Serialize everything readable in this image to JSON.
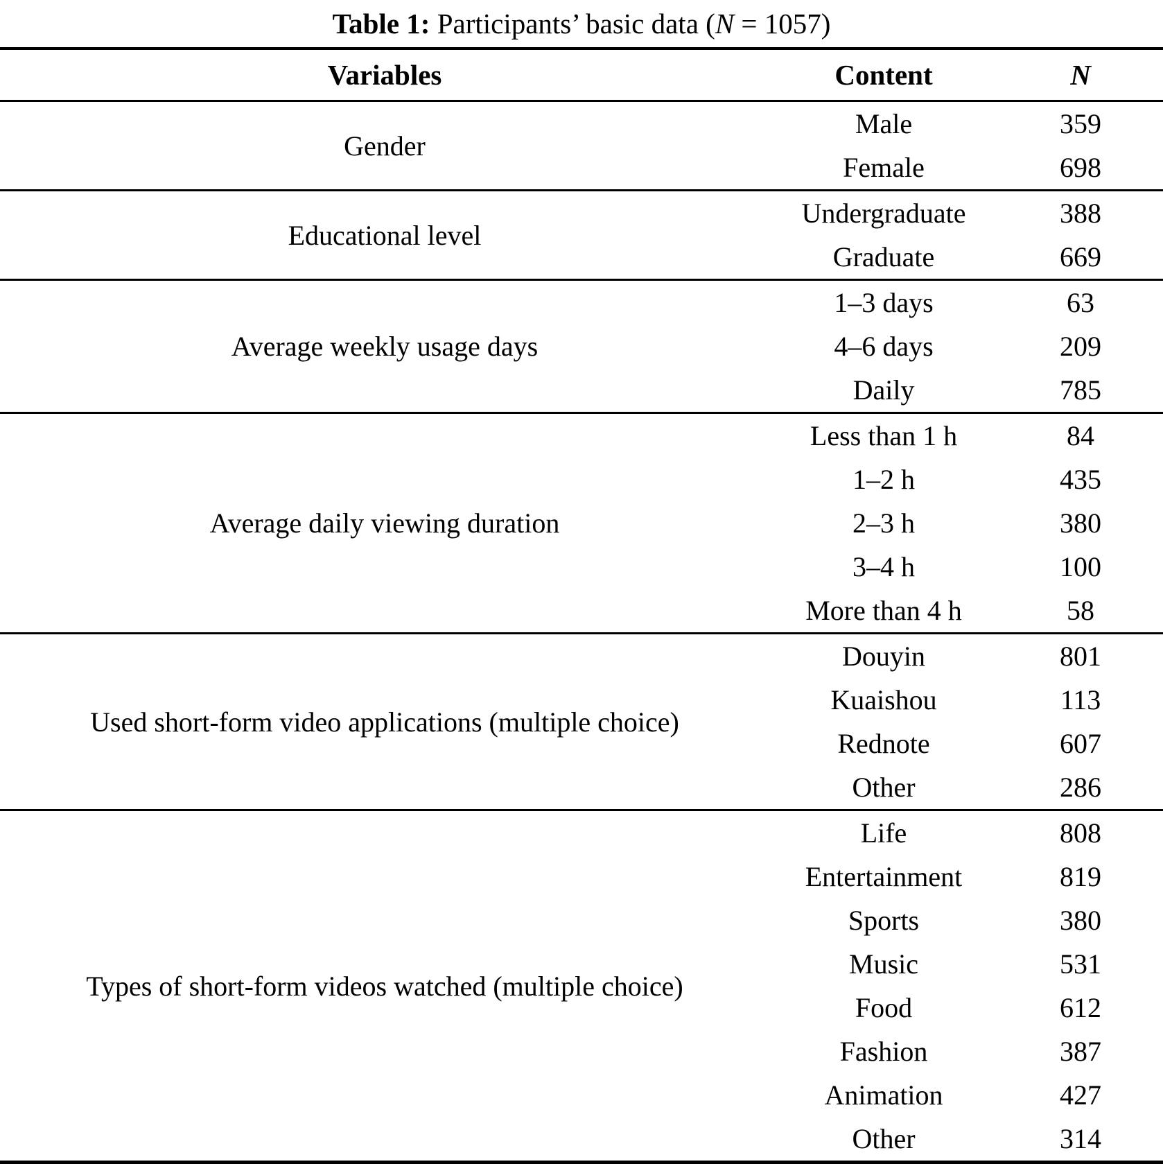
{
  "title": {
    "label": "Table 1:",
    "pre": " Participants’ basic data (",
    "n_var": "N",
    "post": " = 1057)"
  },
  "headers": {
    "variables": "Variables",
    "content": "Content",
    "n": "N"
  },
  "table": {
    "sections": [
      {
        "variable": "Gender",
        "rows": [
          {
            "content": "Male",
            "n": "359"
          },
          {
            "content": "Female",
            "n": "698"
          }
        ]
      },
      {
        "variable": "Educational level",
        "rows": [
          {
            "content": "Undergraduate",
            "n": "388"
          },
          {
            "content": "Graduate",
            "n": "669"
          }
        ]
      },
      {
        "variable": "Average weekly usage days",
        "rows": [
          {
            "content": "1–3 days",
            "n": "63"
          },
          {
            "content": "4–6 days",
            "n": "209"
          },
          {
            "content": "Daily",
            "n": "785"
          }
        ]
      },
      {
        "variable": "Average daily viewing duration",
        "rows": [
          {
            "content": "Less than 1 h",
            "n": "84"
          },
          {
            "content": "1–2 h",
            "n": "435"
          },
          {
            "content": "2–3 h",
            "n": "380"
          },
          {
            "content": "3–4 h",
            "n": "100"
          },
          {
            "content": "More than 4 h",
            "n": "58"
          }
        ]
      },
      {
        "variable": "Used short-form video applications (multiple choice)",
        "rows": [
          {
            "content": "Douyin",
            "n": "801"
          },
          {
            "content": "Kuaishou",
            "n": "113"
          },
          {
            "content": "Rednote",
            "n": "607"
          },
          {
            "content": "Other",
            "n": "286"
          }
        ]
      },
      {
        "variable": "Types of short-form videos watched (multiple choice)",
        "rows": [
          {
            "content": "Life",
            "n": "808"
          },
          {
            "content": "Entertainment",
            "n": "819"
          },
          {
            "content": "Sports",
            "n": "380"
          },
          {
            "content": "Music",
            "n": "531"
          },
          {
            "content": "Food",
            "n": "612"
          },
          {
            "content": "Fashion",
            "n": "387"
          },
          {
            "content": "Animation",
            "n": "427"
          },
          {
            "content": "Other",
            "n": "314"
          }
        ]
      }
    ]
  },
  "colors": {
    "text": "#000000",
    "rule": "#000000",
    "background": "#ffffff"
  }
}
